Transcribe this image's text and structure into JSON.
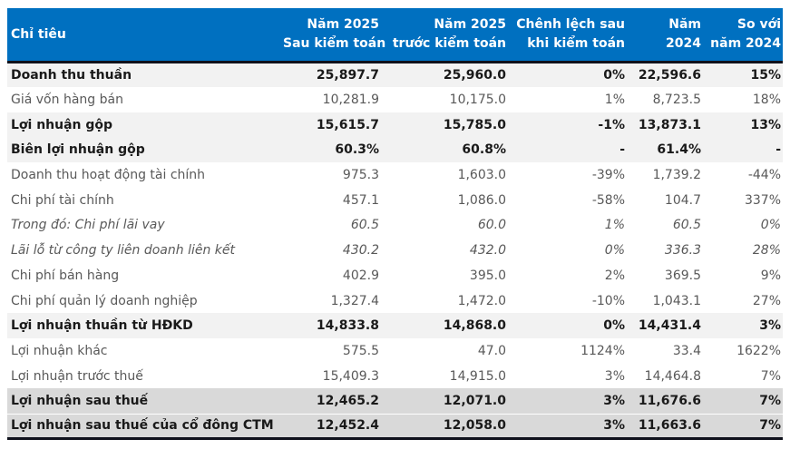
{
  "colors": {
    "header_bg": "#0070C0",
    "header_text": "#FFFFFF",
    "row_highlight_bg": "#F2F2F2",
    "row_total_bg": "#D9D9D9",
    "border_dark": "#10121C",
    "text_regular": "#595959",
    "text_strong": "#1A1A1A"
  },
  "table": {
    "columns": [
      {
        "id": "chi-tieu",
        "line1": "Chỉ tiêu",
        "line2": "",
        "align": "left"
      },
      {
        "id": "nam-2025-sau-kiem-toan",
        "line1": "Năm 2025",
        "line2": "Sau kiểm toán",
        "align": "right"
      },
      {
        "id": "nam-2025-truoc-kiem-toan",
        "line1": "Năm 2025",
        "line2": "trước kiểm toán",
        "align": "right"
      },
      {
        "id": "chenh-lech-sau-khi-kiem-toan",
        "line1": "Chênh lệch sau",
        "line2": "khi kiểm toán",
        "align": "right"
      },
      {
        "id": "nam-2024",
        "line1": "Năm",
        "line2": "2024",
        "align": "right"
      },
      {
        "id": "so-voi-nam-2024",
        "line1": "So với",
        "line2": "năm 2024",
        "align": "right"
      }
    ],
    "rows": [
      {
        "label": "Doanh thu thuần",
        "values": [
          "25,897.7",
          "25,960.0",
          "0%",
          "22,596.6",
          "15%"
        ],
        "style": "bold-highlight"
      },
      {
        "label": "Giá vốn hàng bán",
        "values": [
          "10,281.9",
          "10,175.0",
          "1%",
          "8,723.5",
          "18%"
        ],
        "style": "normal"
      },
      {
        "label": "Lợi nhuận gộp",
        "values": [
          "15,615.7",
          "15,785.0",
          "-1%",
          "13,873.1",
          "13%"
        ],
        "style": "bold-highlight"
      },
      {
        "label": "Biên lợi nhuận gộp",
        "values": [
          "60.3%",
          "60.8%",
          "-",
          "61.4%",
          "-"
        ],
        "style": "bold-highlight"
      },
      {
        "label": "Doanh thu hoạt động tài chính",
        "values": [
          "975.3",
          "1,603.0",
          "-39%",
          "1,739.2",
          "-44%"
        ],
        "style": "normal"
      },
      {
        "label": "Chi phí tài chính",
        "values": [
          "457.1",
          "1,086.0",
          "-58%",
          "104.7",
          "337%"
        ],
        "style": "normal"
      },
      {
        "label": "Trong đó: Chi phí lãi vay",
        "values": [
          "60.5",
          "60.0",
          "1%",
          "60.5",
          "0%"
        ],
        "style": "italic"
      },
      {
        "label": "Lãi lỗ từ công ty liên doanh liên kết",
        "values": [
          "430.2",
          "432.0",
          "0%",
          "336.3",
          "28%"
        ],
        "style": "italic"
      },
      {
        "label": "Chi phí bán hàng",
        "values": [
          "402.9",
          "395.0",
          "2%",
          "369.5",
          "9%"
        ],
        "style": "normal"
      },
      {
        "label": "Chi phí quản lý doanh nghiệp",
        "values": [
          "1,327.4",
          "1,472.0",
          "-10%",
          "1,043.1",
          "27%"
        ],
        "style": "normal"
      },
      {
        "label": "Lợi nhuận thuần từ HĐKD",
        "values": [
          "14,833.8",
          "14,868.0",
          "0%",
          "14,431.4",
          "3%"
        ],
        "style": "bold-highlight"
      },
      {
        "label": "Lợi nhuận khác",
        "values": [
          "575.5",
          "47.0",
          "1124%",
          "33.4",
          "1622%"
        ],
        "style": "normal"
      },
      {
        "label": "Lợi nhuận trước thuế",
        "values": [
          "15,409.3",
          "14,915.0",
          "3%",
          "14,464.8",
          "7%"
        ],
        "style": "normal"
      },
      {
        "label": "Lợi nhuận sau thuế",
        "values": [
          "12,465.2",
          "12,071.0",
          "3%",
          "11,676.6",
          "7%"
        ],
        "style": "total"
      },
      {
        "label": "Lợi nhuận sau thuế của cổ đông CTM",
        "values": [
          "12,452.4",
          "12,058.0",
          "3%",
          "11,663.6",
          "7%"
        ],
        "style": "total"
      }
    ]
  }
}
